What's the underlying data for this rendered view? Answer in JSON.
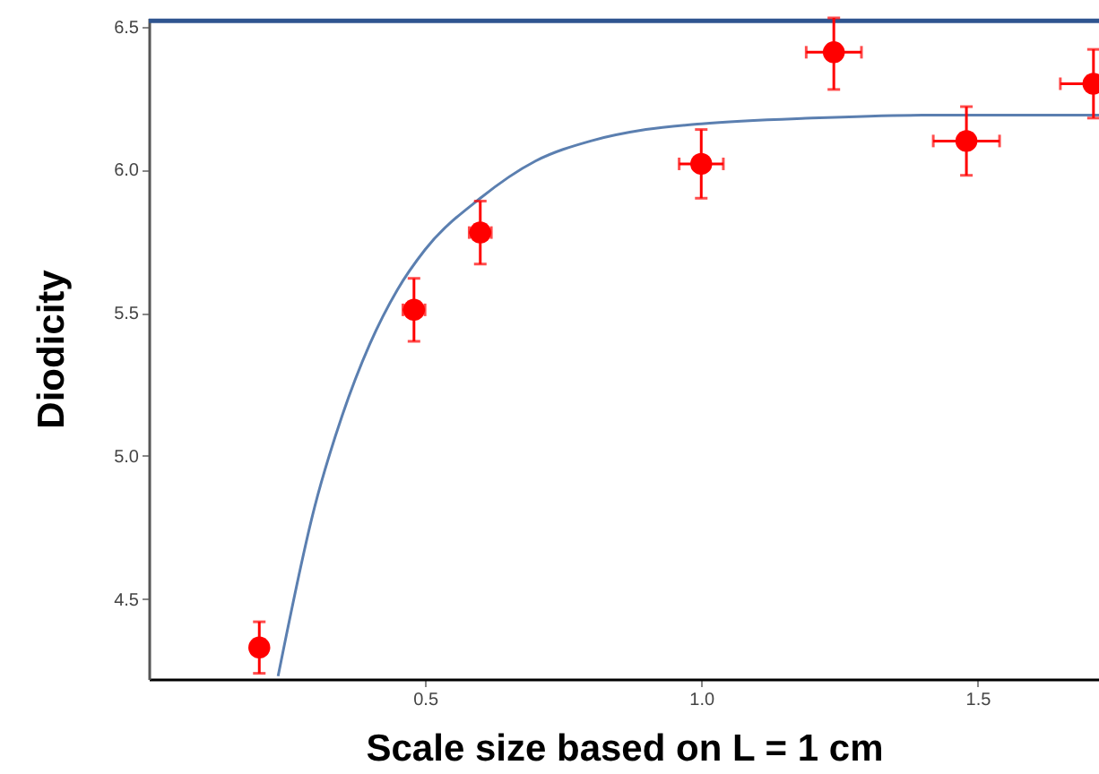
{
  "chart_data": {
    "type": "scatter",
    "xlabel": "Scale size based on L = 1 cm",
    "ylabel": "Diodicity",
    "xlim": [
      0,
      1.72
    ],
    "ylim": [
      4.22,
      6.53
    ],
    "xticks": [
      0.5,
      {
        "value": 1,
        "label": "1.0"
      },
      1.5
    ],
    "yticks": [
      4.5,
      {
        "value": 5,
        "label": "5.0"
      },
      5.5,
      {
        "value": 6,
        "label": "6.0"
      },
      6.5
    ],
    "grid": false,
    "ref_lines": [
      {
        "axis": "y",
        "value": 6.52,
        "color": "#2f5590"
      }
    ],
    "series": [
      {
        "color": "#ff0000",
        "marker": "circle",
        "x": [
          0.2,
          0.48,
          0.6,
          1.0,
          1.24,
          1.48,
          1.71
        ],
        "values": [
          4.33,
          5.51,
          5.78,
          6.02,
          6.41,
          6.1,
          6.3
        ],
        "errors": [
          0.09,
          0.11,
          0.11,
          0.12,
          [
            6.28,
            6.53
          ],
          0.12,
          0.12
        ],
        "xerrors": [
          null,
          0.02,
          0.02,
          0.04,
          0.05,
          0.06,
          [
            1.65,
            1.71
          ]
        ]
      },
      {
        "type": "line",
        "color": "#5b7fb0",
        "x": [
          0.234,
          0.3,
          0.35,
          0.4,
          0.45,
          0.5,
          0.6,
          0.7,
          0.8,
          0.9,
          1.0,
          1.2,
          1.4,
          1.72
        ],
        "values": [
          4.23,
          4.82,
          5.14,
          5.39,
          5.58,
          5.72,
          5.9,
          6.03,
          6.1,
          6.14,
          6.16,
          6.18,
          6.19,
          6.19
        ]
      }
    ]
  }
}
